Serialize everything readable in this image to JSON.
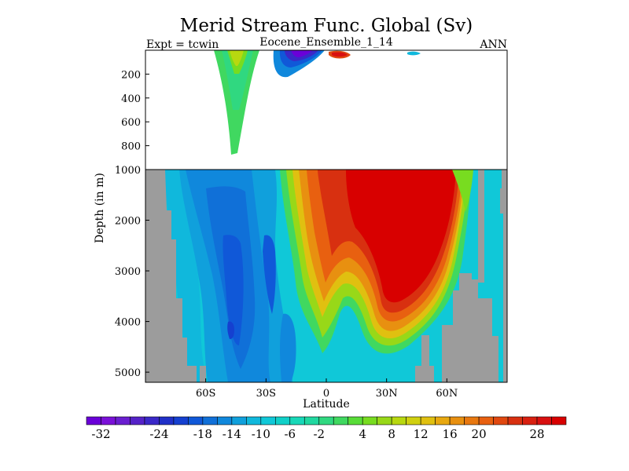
{
  "chart_data": {
    "type": "heatmap",
    "title": "Merid Stream Func. Global (Sv)",
    "subtitle_left": "Expt = tcwin",
    "subtitle_center": "Eocene_Ensemble_1_14",
    "subtitle_right": "ANN",
    "xlabel": "Latitude",
    "ylabel": "Depth (in m)",
    "x_ticks": [
      {
        "value": -60,
        "label": "60S"
      },
      {
        "value": -30,
        "label": "30S"
      },
      {
        "value": 0,
        "label": "0"
      },
      {
        "value": 30,
        "label": "30N"
      },
      {
        "value": 60,
        "label": "60N"
      }
    ],
    "xlim": [
      -90,
      90
    ],
    "y_ticks_upper": [
      {
        "value": 200,
        "label": "200"
      },
      {
        "value": 400,
        "label": "400"
      },
      {
        "value": 600,
        "label": "600"
      },
      {
        "value": 800,
        "label": "800"
      }
    ],
    "y_ticks_lower": [
      {
        "value": 1000,
        "label": "1000"
      },
      {
        "value": 2000,
        "label": "2000"
      },
      {
        "value": 3000,
        "label": "3000"
      },
      {
        "value": 4000,
        "label": "4000"
      },
      {
        "value": 5000,
        "label": "5000"
      }
    ],
    "ylim_upper": [
      0,
      1000
    ],
    "ylim_lower": [
      1000,
      5200
    ],
    "colorbar": {
      "levels": [
        -34,
        -32,
        -30,
        -28,
        -26,
        -24,
        -22,
        -20,
        -18,
        -16,
        -14,
        -12,
        -10,
        -8,
        -6,
        -4,
        -2,
        0,
        2,
        4,
        6,
        8,
        10,
        12,
        14,
        16,
        18,
        20,
        22,
        24,
        26,
        28,
        30,
        32
      ],
      "labels": [
        {
          "value": -32,
          "label": "-32"
        },
        {
          "value": -24,
          "label": "-24"
        },
        {
          "value": -18,
          "label": "-18"
        },
        {
          "value": -14,
          "label": "-14"
        },
        {
          "value": -10,
          "label": "-10"
        },
        {
          "value": -6,
          "label": "-6"
        },
        {
          "value": -2,
          "label": "-2"
        },
        {
          "value": 4,
          "label": "4"
        },
        {
          "value": 8,
          "label": "8"
        },
        {
          "value": 12,
          "label": "12"
        },
        {
          "value": 16,
          "label": "16"
        },
        {
          "value": 20,
          "label": "20"
        },
        {
          "value": 28,
          "label": "28"
        }
      ],
      "colors": [
        "#6a00d8",
        "#7a10d8",
        "#6a1ed0",
        "#5522c8",
        "#3a28c8",
        "#2030c8",
        "#1540d0",
        "#1058d8",
        "#1070d8",
        "#1088dc",
        "#10a0dc",
        "#10b8dc",
        "#10c8d8",
        "#10d0c8",
        "#18d8b8",
        "#20d8a0",
        "#30d880",
        "#40d860",
        "#58dc38",
        "#78dc20",
        "#98d818",
        "#b8d810",
        "#d0d010",
        "#e0c010",
        "#e8a810",
        "#e89010",
        "#e87810",
        "#e86010",
        "#e04810",
        "#d83010",
        "#d82010",
        "#d81010",
        "#d80000"
      ]
    },
    "land_color": "#9c9c9c",
    "grid": false
  }
}
